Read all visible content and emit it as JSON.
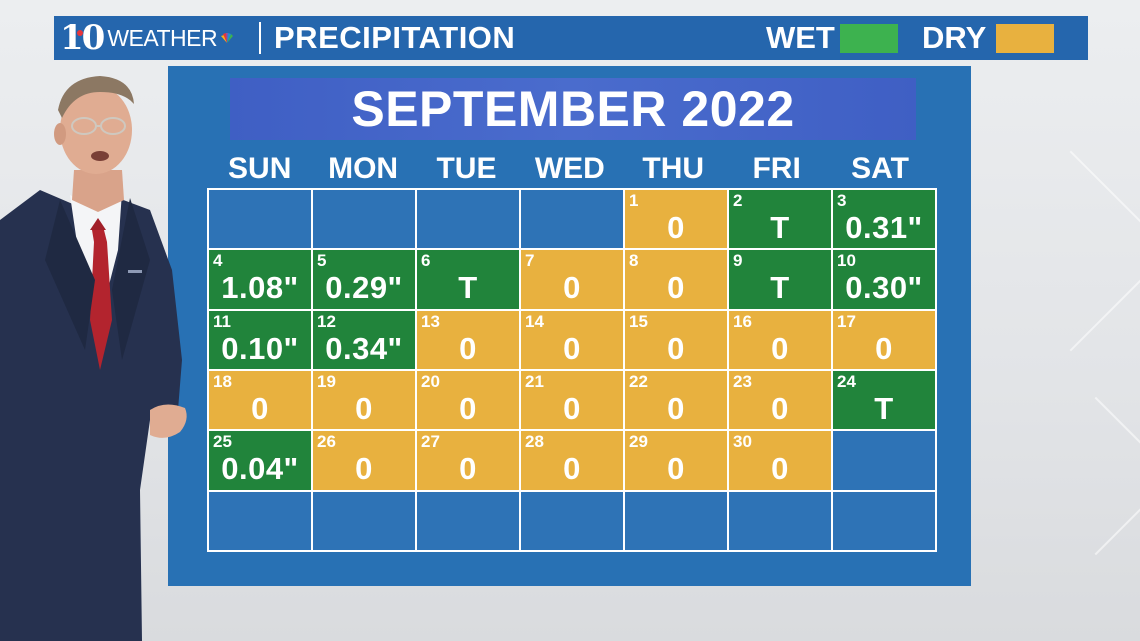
{
  "header": {
    "logo_number": "10",
    "logo_text": "WEATHER",
    "title": "PRECIPITATION",
    "legend": [
      {
        "label": "WET",
        "color": "#3db24f"
      },
      {
        "label": "DRY",
        "color": "#e8b13f"
      }
    ]
  },
  "calendar": {
    "month_title": "SEPTEMBER 2022",
    "weekdays": [
      "SUN",
      "MON",
      "TUE",
      "WED",
      "THU",
      "FRI",
      "SAT"
    ],
    "colors": {
      "wet": "#21843b",
      "dry": "#e8b13f",
      "empty": "#2e73b6"
    },
    "weeks": [
      [
        null,
        null,
        null,
        null,
        {
          "day": "1",
          "value": "0",
          "status": "dry"
        },
        {
          "day": "2",
          "value": "T",
          "status": "wet"
        },
        {
          "day": "3",
          "value": "0.31\"",
          "status": "wet"
        }
      ],
      [
        {
          "day": "4",
          "value": "1.08\"",
          "status": "wet"
        },
        {
          "day": "5",
          "value": "0.29\"",
          "status": "wet"
        },
        {
          "day": "6",
          "value": "T",
          "status": "wet"
        },
        {
          "day": "7",
          "value": "0",
          "status": "dry"
        },
        {
          "day": "8",
          "value": "0",
          "status": "dry"
        },
        {
          "day": "9",
          "value": "T",
          "status": "wet"
        },
        {
          "day": "10",
          "value": "0.30\"",
          "status": "wet"
        }
      ],
      [
        {
          "day": "11",
          "value": "0.10\"",
          "status": "wet"
        },
        {
          "day": "12",
          "value": "0.34\"",
          "status": "wet"
        },
        {
          "day": "13",
          "value": "0",
          "status": "dry"
        },
        {
          "day": "14",
          "value": "0",
          "status": "dry"
        },
        {
          "day": "15",
          "value": "0",
          "status": "dry"
        },
        {
          "day": "16",
          "value": "0",
          "status": "dry"
        },
        {
          "day": "17",
          "value": "0",
          "status": "dry"
        }
      ],
      [
        {
          "day": "18",
          "value": "0",
          "status": "dry"
        },
        {
          "day": "19",
          "value": "0",
          "status": "dry"
        },
        {
          "day": "20",
          "value": "0",
          "status": "dry"
        },
        {
          "day": "21",
          "value": "0",
          "status": "dry"
        },
        {
          "day": "22",
          "value": "0",
          "status": "dry"
        },
        {
          "day": "23",
          "value": "0",
          "status": "dry"
        },
        {
          "day": "24",
          "value": "T",
          "status": "wet"
        }
      ],
      [
        {
          "day": "25",
          "value": "0.04\"",
          "status": "wet"
        },
        {
          "day": "26",
          "value": "0",
          "status": "dry"
        },
        {
          "day": "27",
          "value": "0",
          "status": "dry"
        },
        {
          "day": "28",
          "value": "0",
          "status": "dry"
        },
        {
          "day": "29",
          "value": "0",
          "status": "dry"
        },
        {
          "day": "30",
          "value": "0",
          "status": "dry"
        },
        null
      ],
      [
        null,
        null,
        null,
        null,
        null,
        null,
        null
      ]
    ]
  }
}
